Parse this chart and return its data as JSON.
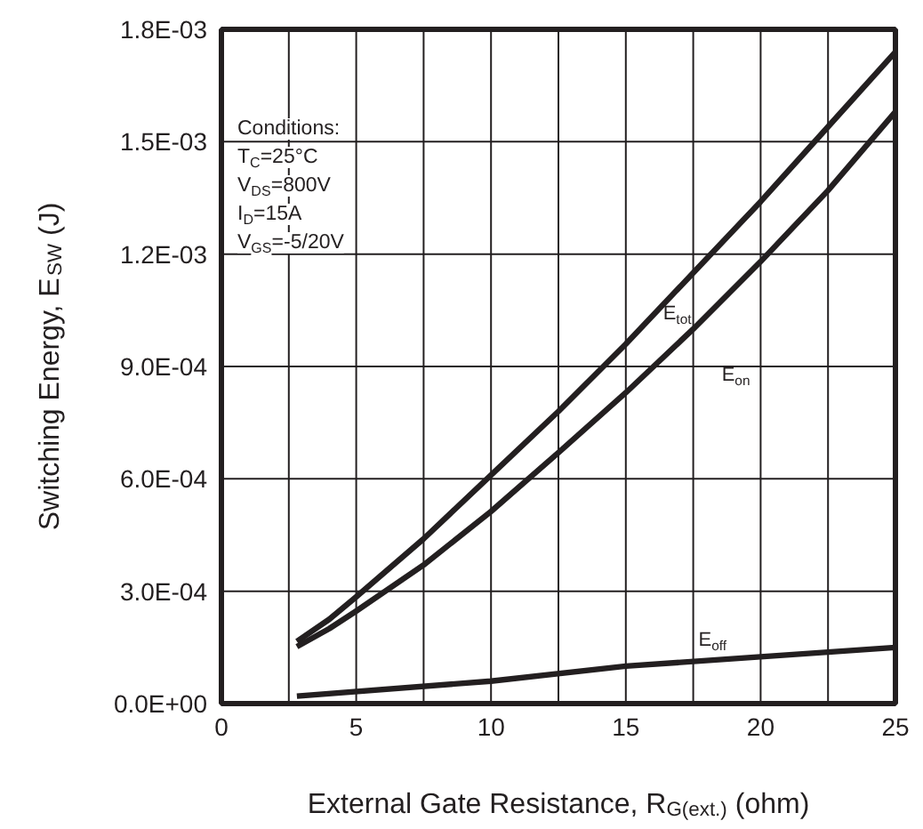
{
  "chart_data": {
    "type": "line",
    "xlabel": "External Gate Resistance, R$_{G(ext.)}$ (ohm)",
    "ylabel": "Switching Energy, E$_{SW}$ (J)",
    "xlim": [
      0,
      25
    ],
    "xticks": [
      0,
      {
        "value": 2.5,
        "label": null
      },
      5,
      {
        "value": 7.5,
        "label": null
      },
      10,
      {
        "value": 12.5,
        "label": null
      },
      15,
      {
        "value": 17.5,
        "label": null
      },
      20,
      {
        "value": 22.5,
        "label": null
      },
      25
    ],
    "ylim": [
      0,
      0.0018
    ],
    "yticks": [
      {
        "value": 0,
        "label": "0.0E+00"
      },
      {
        "value": 0.0003,
        "label": "3.0E-04"
      },
      {
        "value": 0.0006,
        "label": "6.0E-04"
      },
      {
        "value": 0.0009,
        "label": "9.0E-04"
      },
      {
        "value": 0.0012,
        "label": "1.2E-03"
      },
      {
        "value": 0.0015,
        "label": "1.5E-03"
      },
      {
        "value": 0.0018,
        "label": "1.8E-03"
      }
    ],
    "grid": true,
    "line_style": "solid",
    "series": [
      {
        "name": "E$_{tot}$",
        "color": "#231f20",
        "x": [
          2.8,
          4,
          5,
          7.5,
          10,
          12.5,
          15,
          17.5,
          20,
          22.5,
          25
        ],
        "values": [
          0.000166,
          0.000225,
          0.000285,
          0.00044,
          0.00061,
          0.00078,
          0.00096,
          0.00115,
          0.00134,
          0.00154,
          0.00174
        ]
      },
      {
        "name": "E$_{on}$",
        "color": "#231f20",
        "x": [
          2.8,
          4,
          5,
          7.5,
          10,
          12.5,
          15,
          17.5,
          20,
          22.5,
          25
        ],
        "values": [
          0.000152,
          0.0002,
          0.000247,
          0.00037,
          0.000513,
          0.00067,
          0.00083,
          0.001,
          0.00118,
          0.00137,
          0.00158
        ]
      },
      {
        "name": "E$_{off}$",
        "color": "#231f20",
        "x": [
          2.8,
          10,
          15,
          20,
          25
        ],
        "values": [
          2e-05,
          6e-05,
          0.0001,
          0.000125,
          0.00015
        ]
      }
    ],
    "annotations": [
      "Conditions:",
      "T$_{C}$=25°C",
      "V$_{DS}$=800V",
      "I$_{D}$=15A",
      "V$_{GS}$=-5/20V"
    ]
  }
}
